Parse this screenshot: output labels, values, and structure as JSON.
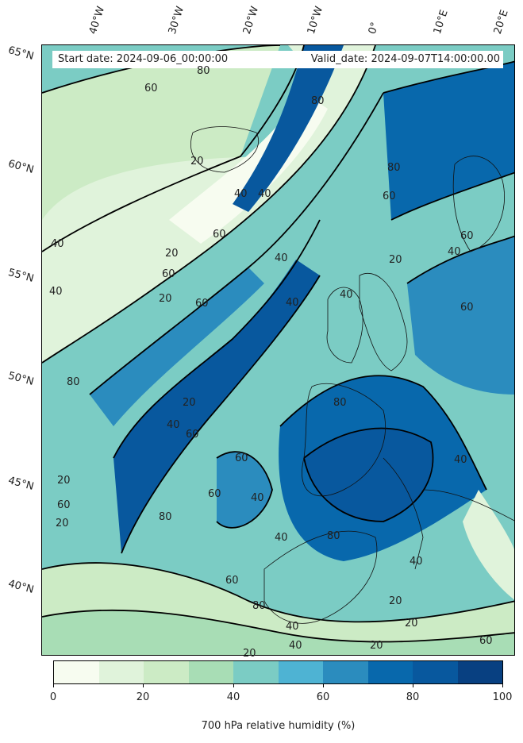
{
  "header": {
    "start_date": "Start date: 2024-09-06_00:00:00",
    "valid_date": "Valid_date: 2024-09-07T14:00:00.00"
  },
  "axes": {
    "longitude_labels": [
      "40°W",
      "30°W",
      "20°W",
      "10°W",
      "0°",
      "10°E",
      "20°E"
    ],
    "latitude_labels": [
      "65°N",
      "60°N",
      "55°N",
      "50°N",
      "45°N",
      "40°N"
    ]
  },
  "contour_labels": [
    "80",
    "60",
    "80",
    "60",
    "40",
    "40",
    "20",
    "20",
    "60",
    "60",
    "20",
    "60",
    "40",
    "40",
    "80",
    "60",
    "20",
    "40",
    "40",
    "60",
    "40",
    "40",
    "80",
    "60",
    "20",
    "20",
    "20",
    "60",
    "40",
    "80",
    "80",
    "40",
    "60",
    "60",
    "80",
    "80",
    "40",
    "40",
    "60",
    "20",
    "20",
    "40",
    "40",
    "20",
    "20",
    "40",
    "60"
  ],
  "colorbar": {
    "label": "700 hPa relative humidity (%)",
    "ticks": [
      "0",
      "20",
      "40",
      "60",
      "80",
      "100"
    ],
    "colors": [
      "#f7fcf0",
      "#e0f3db",
      "#ccebc5",
      "#a8ddb5",
      "#7bccc4",
      "#4eb3d3",
      "#2b8cbe",
      "#0868ac",
      "#08589e",
      "#084081"
    ]
  }
}
